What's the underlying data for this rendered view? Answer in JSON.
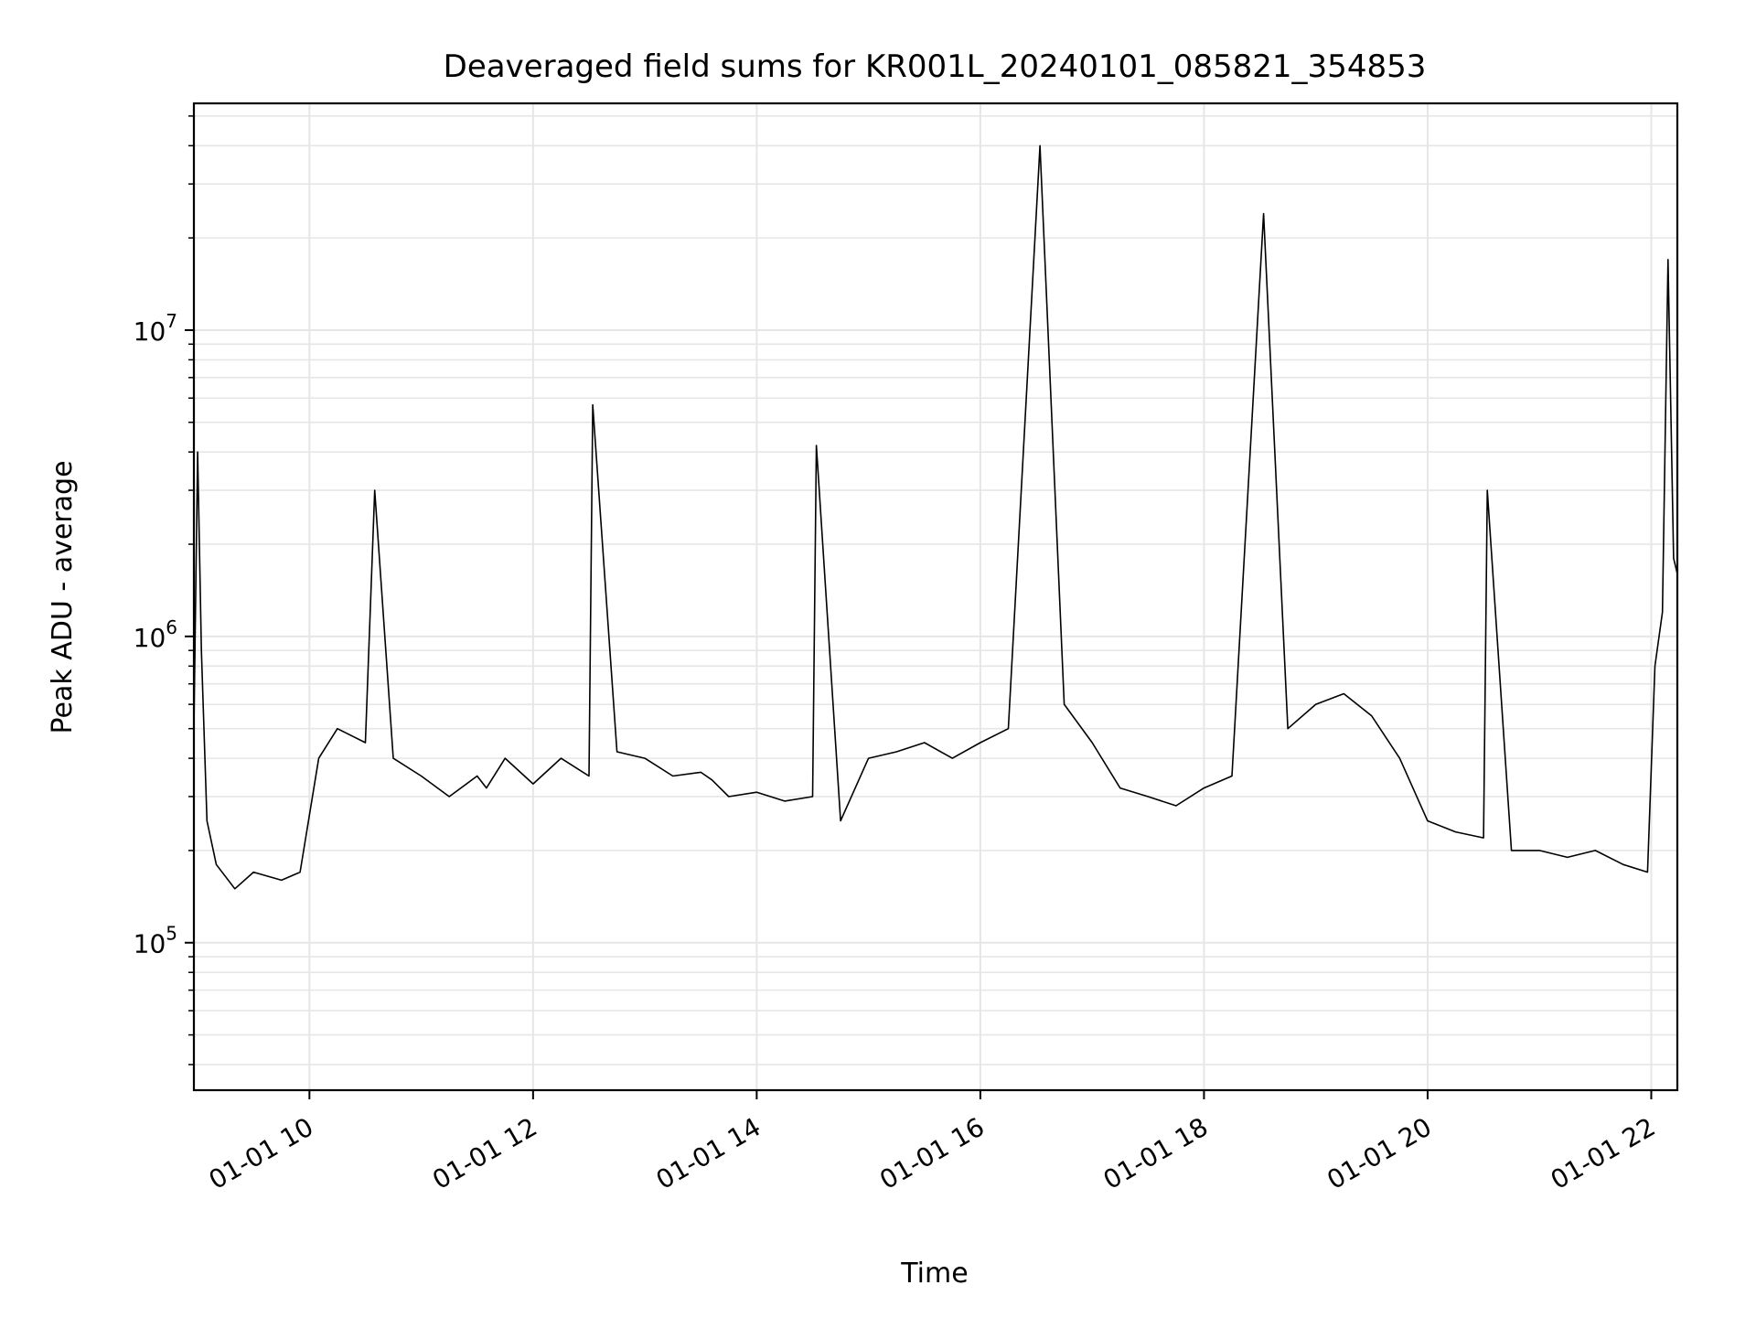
{
  "chart_data": {
    "type": "line",
    "title": "Deaveraged field sums for KR001L_20240101_085821_354853",
    "xlabel": "Time",
    "ylabel": "Peak ADU - average",
    "y_scale": "log",
    "ylim": [
      33000,
      55000000
    ],
    "xlim": [
      "2024-01-01T08:58:00",
      "2024-01-01T22:14:00"
    ],
    "grid": true,
    "line_color": "#000000",
    "x_ticks": [
      {
        "t": "2024-01-01T10:00:00",
        "label": "01-01 10"
      },
      {
        "t": "2024-01-01T12:00:00",
        "label": "01-01 12"
      },
      {
        "t": "2024-01-01T14:00:00",
        "label": "01-01 14"
      },
      {
        "t": "2024-01-01T16:00:00",
        "label": "01-01 16"
      },
      {
        "t": "2024-01-01T18:00:00",
        "label": "01-01 18"
      },
      {
        "t": "2024-01-01T20:00:00",
        "label": "01-01 20"
      },
      {
        "t": "2024-01-01T22:00:00",
        "label": "01-01 22"
      }
    ],
    "y_ticks": [
      {
        "value": 100000,
        "base": "10",
        "exp": "5"
      },
      {
        "value": 1000000,
        "base": "10",
        "exp": "6"
      },
      {
        "value": 10000000,
        "base": "10",
        "exp": "7"
      }
    ],
    "series": [
      {
        "x": [
          "2024-01-01T08:58:00",
          "2024-01-01T09:00:00",
          "2024-01-01T09:02:00",
          "2024-01-01T09:05:00",
          "2024-01-01T09:10:00",
          "2024-01-01T09:20:00",
          "2024-01-01T09:30:00",
          "2024-01-01T09:45:00",
          "2024-01-01T09:55:00",
          "2024-01-01T10:05:00",
          "2024-01-01T10:15:00",
          "2024-01-01T10:30:00",
          "2024-01-01T10:35:00",
          "2024-01-01T10:45:00",
          "2024-01-01T11:00:00",
          "2024-01-01T11:15:00",
          "2024-01-01T11:30:00",
          "2024-01-01T11:35:00",
          "2024-01-01T11:45:00",
          "2024-01-01T12:00:00",
          "2024-01-01T12:15:00",
          "2024-01-01T12:30:00",
          "2024-01-01T12:32:00",
          "2024-01-01T12:45:00",
          "2024-01-01T13:00:00",
          "2024-01-01T13:15:00",
          "2024-01-01T13:30:00",
          "2024-01-01T13:36:00",
          "2024-01-01T13:45:00",
          "2024-01-01T14:00:00",
          "2024-01-01T14:15:00",
          "2024-01-01T14:30:00",
          "2024-01-01T14:32:00",
          "2024-01-01T14:45:00",
          "2024-01-01T15:00:00",
          "2024-01-01T15:15:00",
          "2024-01-01T15:30:00",
          "2024-01-01T15:45:00",
          "2024-01-01T16:00:00",
          "2024-01-01T16:15:00",
          "2024-01-01T16:32:00",
          "2024-01-01T16:45:00",
          "2024-01-01T17:00:00",
          "2024-01-01T17:15:00",
          "2024-01-01T17:30:00",
          "2024-01-01T17:45:00",
          "2024-01-01T18:00:00",
          "2024-01-01T18:15:00",
          "2024-01-01T18:32:00",
          "2024-01-01T18:45:00",
          "2024-01-01T19:00:00",
          "2024-01-01T19:15:00",
          "2024-01-01T19:30:00",
          "2024-01-01T19:45:00",
          "2024-01-01T20:00:00",
          "2024-01-01T20:15:00",
          "2024-01-01T20:30:00",
          "2024-01-01T20:32:00",
          "2024-01-01T20:45:00",
          "2024-01-01T21:00:00",
          "2024-01-01T21:15:00",
          "2024-01-01T21:30:00",
          "2024-01-01T21:45:00",
          "2024-01-01T21:58:00",
          "2024-01-01T22:02:00",
          "2024-01-01T22:06:00",
          "2024-01-01T22:09:00",
          "2024-01-01T22:12:00",
          "2024-01-01T22:14:00"
        ],
        "y": [
          500000,
          4000000,
          900000,
          250000,
          180000,
          150000,
          170000,
          160000,
          170000,
          400000,
          500000,
          450000,
          3000000,
          400000,
          350000,
          300000,
          350000,
          320000,
          400000,
          330000,
          400000,
          350000,
          5700000,
          420000,
          400000,
          350000,
          360000,
          340000,
          300000,
          310000,
          290000,
          300000,
          4200000,
          250000,
          400000,
          420000,
          450000,
          400000,
          450000,
          500000,
          40000000,
          600000,
          450000,
          320000,
          300000,
          280000,
          320000,
          350000,
          24000000,
          500000,
          600000,
          650000,
          550000,
          400000,
          250000,
          230000,
          220000,
          3000000,
          200000,
          200000,
          190000,
          200000,
          180000,
          170000,
          800000,
          1200000,
          17000000,
          1800000,
          1600000
        ]
      }
    ]
  }
}
